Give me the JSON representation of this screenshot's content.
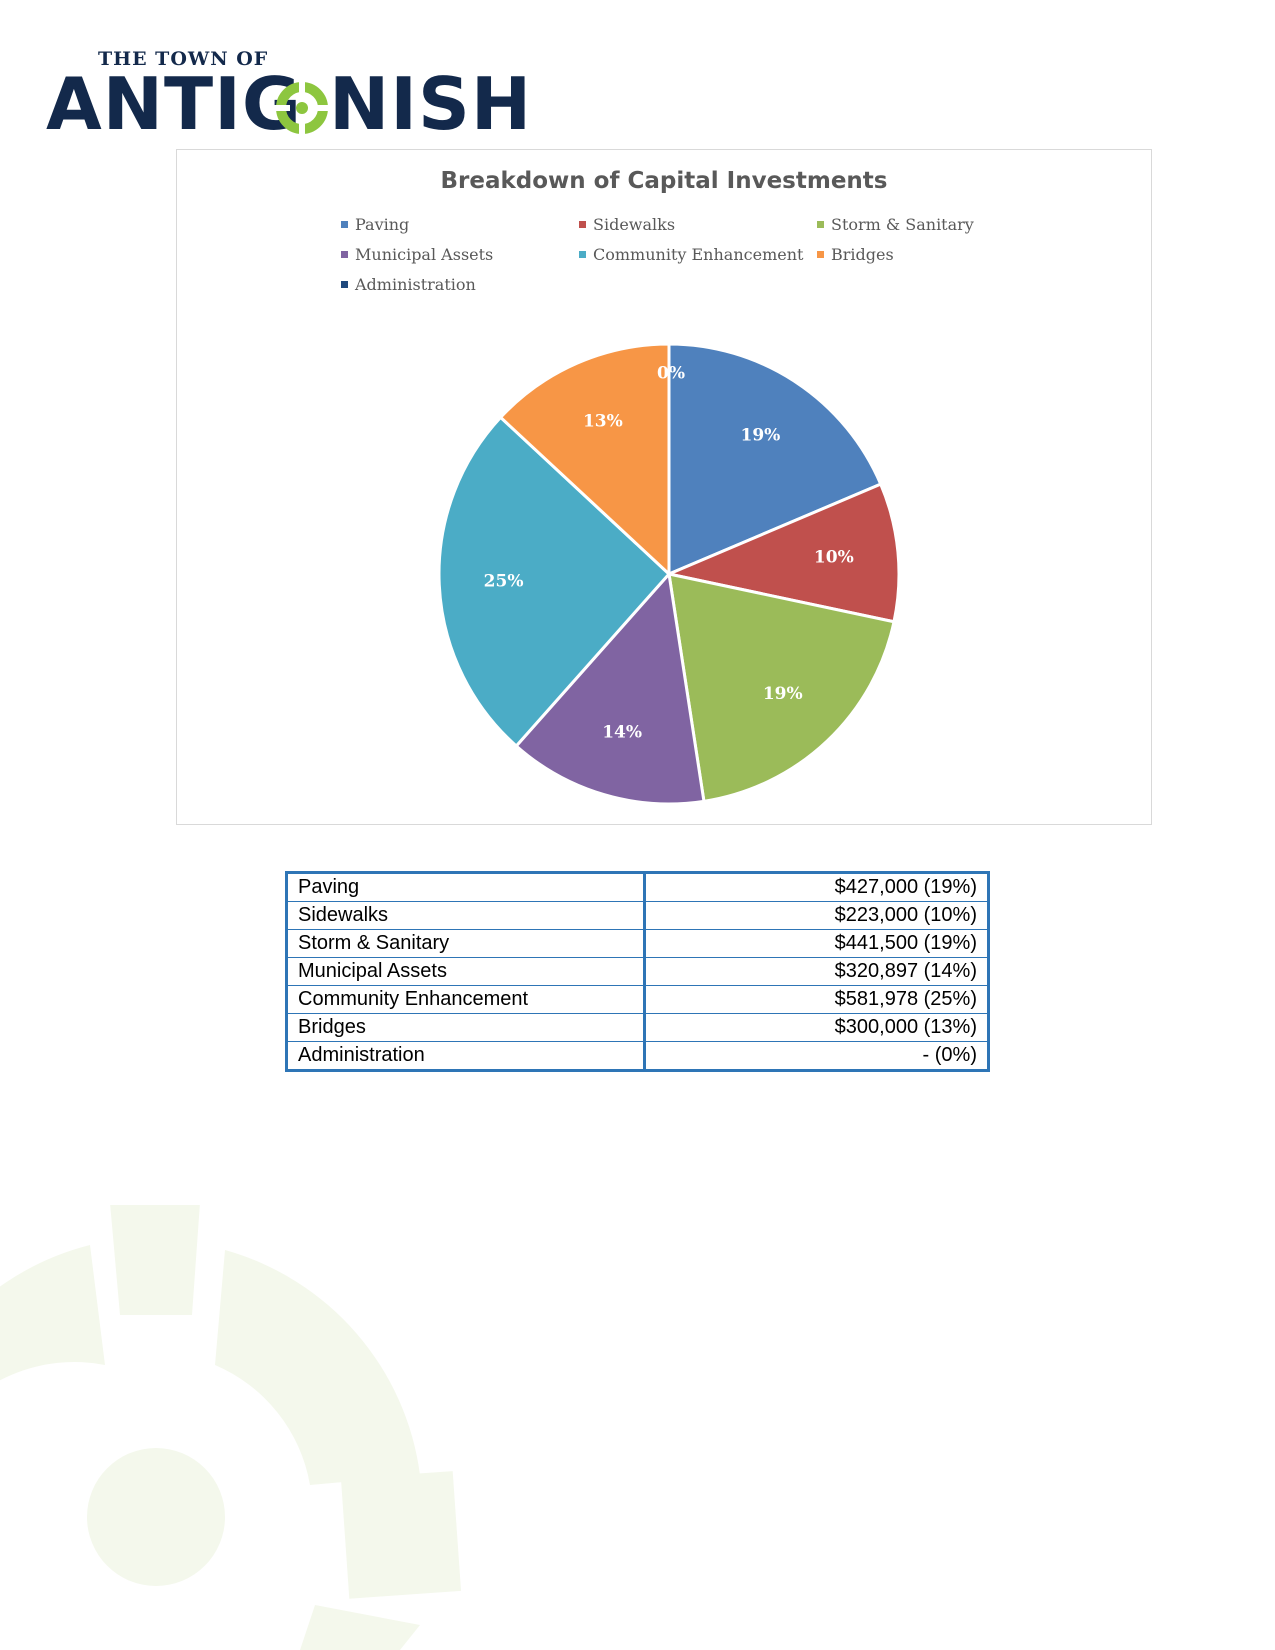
{
  "logo": {
    "top_line": "THE TOWN OF",
    "word_left": "ANTIG",
    "word_right": "NISH",
    "colors": {
      "navy": "#13294b",
      "green": "#8dc63f"
    }
  },
  "chart_data": {
    "type": "pie",
    "title": "Breakdown of Capital Investments",
    "legend_position": "top",
    "slices": [
      {
        "name": "Paving",
        "value": 427000,
        "label": "19%",
        "color": "#4f81bd"
      },
      {
        "name": "Sidewalks",
        "value": 223000,
        "label": "10%",
        "color": "#c0504d"
      },
      {
        "name": "Storm & Sanitary",
        "value": 441500,
        "label": "19%",
        "color": "#9bbb59"
      },
      {
        "name": "Municipal Assets",
        "value": 320897,
        "label": "14%",
        "color": "#8064a2"
      },
      {
        "name": "Community Enhancement",
        "value": 581978,
        "label": "25%",
        "color": "#4bacc6"
      },
      {
        "name": "Bridges",
        "value": 300000,
        "label": "13%",
        "color": "#f79646"
      },
      {
        "name": "Administration",
        "value": 0,
        "label": "0%",
        "color": "#1f497d"
      }
    ]
  },
  "table": {
    "rows": [
      {
        "category": "Paving",
        "amount": "$427,000 (19%)"
      },
      {
        "category": "Sidewalks",
        "amount": "$223,000 (10%)"
      },
      {
        "category": "Storm & Sanitary",
        "amount": "$441,500 (19%)"
      },
      {
        "category": "Municipal Assets",
        "amount": "$320,897 (14%)"
      },
      {
        "category": "Community Enhancement",
        "amount": "$581,978 (25%)"
      },
      {
        "category": "Bridges",
        "amount": "$300,000 (13%)"
      },
      {
        "category": "Administration",
        "amount": "- (0%)"
      }
    ]
  },
  "watermark": {
    "color": "#f4f8ec"
  }
}
